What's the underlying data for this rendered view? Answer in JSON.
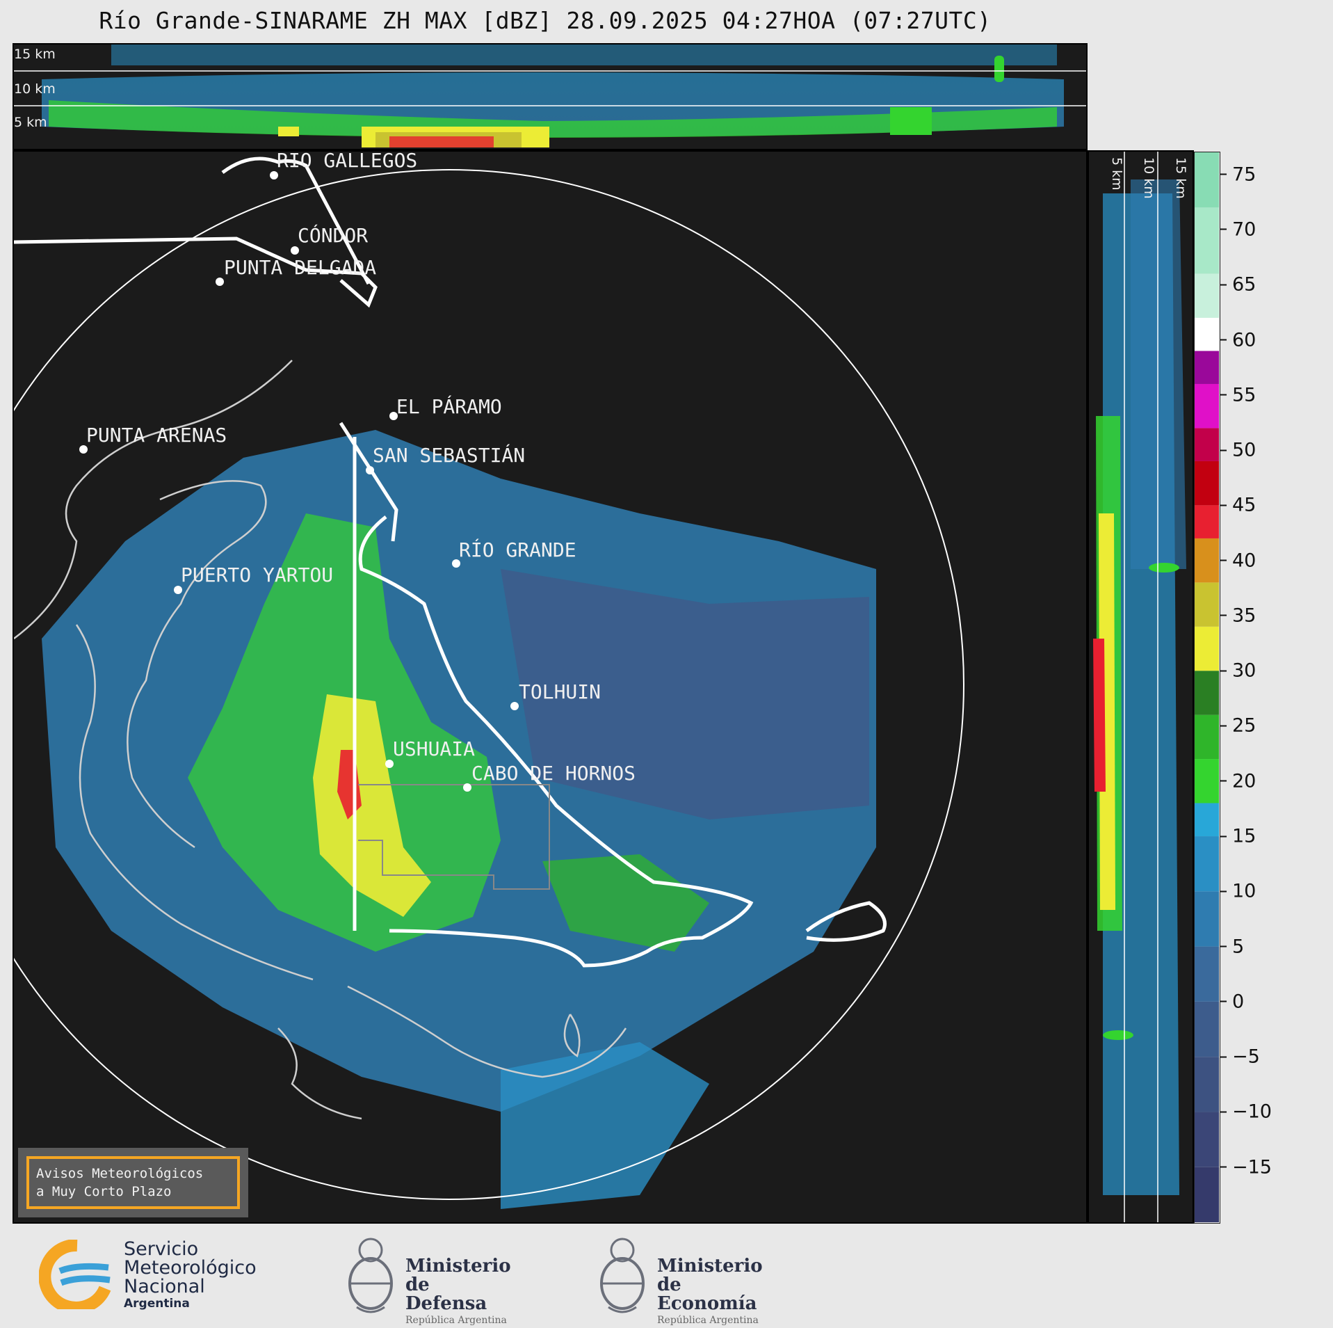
{
  "title": "Río Grande-SINARAME ZH MAX [dBZ] 28.09.2025 04:27HOA (07:27UTC)",
  "top_xsec": {
    "height_labels": [
      "15 km",
      "10 km",
      "5 km"
    ]
  },
  "side_xsec": {
    "height_labels": [
      "5 km",
      "10 km",
      "15 km"
    ]
  },
  "cities": [
    {
      "name": "RÍO GALLEGOS"
    },
    {
      "name": "CÓNDOR"
    },
    {
      "name": "PUNTA DELGADA"
    },
    {
      "name": "PUNTA ARENAS"
    },
    {
      "name": "EL PÁRAMO"
    },
    {
      "name": "SAN SEBASTIÁN"
    },
    {
      "name": "RÍO GRANDE"
    },
    {
      "name": "PUERTO YARTOU"
    },
    {
      "name": "TOLHUIN"
    },
    {
      "name": "USHUAIA"
    },
    {
      "name": "CABO DE HORNOS"
    }
  ],
  "colorbar": {
    "unit": "dBZ",
    "ticks": [
      "75",
      "70",
      "65",
      "60",
      "55",
      "50",
      "45",
      "40",
      "35",
      "30",
      "25",
      "20",
      "15",
      "10",
      "5",
      "0",
      "−5",
      "−10",
      "−15"
    ],
    "tick_values": [
      75,
      70,
      65,
      60,
      55,
      50,
      45,
      40,
      35,
      30,
      25,
      20,
      15,
      10,
      5,
      0,
      -5,
      -10,
      -15
    ],
    "range": [
      -20,
      77
    ],
    "stops": [
      {
        "from": -20,
        "to": -15,
        "color": "#353a6b"
      },
      {
        "from": -15,
        "to": -10,
        "color": "#3b4677"
      },
      {
        "from": -10,
        "to": -5,
        "color": "#3d5281"
      },
      {
        "from": -5,
        "to": 0,
        "color": "#3d5c8c"
      },
      {
        "from": 0,
        "to": 5,
        "color": "#3a6a9c"
      },
      {
        "from": 5,
        "to": 10,
        "color": "#2f7cb0"
      },
      {
        "from": 10,
        "to": 15,
        "color": "#2a8fc4"
      },
      {
        "from": 15,
        "to": 18,
        "color": "#28a7d8"
      },
      {
        "from": 18,
        "to": 22,
        "color": "#34d42f"
      },
      {
        "from": 22,
        "to": 26,
        "color": "#2fb52a"
      },
      {
        "from": 26,
        "to": 30,
        "color": "#2a7f23"
      },
      {
        "from": 30,
        "to": 34,
        "color": "#ecec35"
      },
      {
        "from": 34,
        "to": 38,
        "color": "#c9c330"
      },
      {
        "from": 38,
        "to": 42,
        "color": "#d8901c"
      },
      {
        "from": 42,
        "to": 45,
        "color": "#e82030"
      },
      {
        "from": 45,
        "to": 49,
        "color": "#c20010"
      },
      {
        "from": 49,
        "to": 52,
        "color": "#c2004a"
      },
      {
        "from": 52,
        "to": 56,
        "color": "#e010c8"
      },
      {
        "from": 56,
        "to": 59,
        "color": "#9a089a"
      },
      {
        "from": 59,
        "to": 62,
        "color": "#ffffff"
      },
      {
        "from": 62,
        "to": 66,
        "color": "#c8f0dc"
      },
      {
        "from": 66,
        "to": 72,
        "color": "#a8e8c8"
      },
      {
        "from": 72,
        "to": 77,
        "color": "#88dcb4"
      }
    ]
  },
  "warning_box": {
    "line1": "Avisos Meteorológicos",
    "line2": "a Muy Corto Plazo",
    "border_color": "#f5a623"
  },
  "logos": {
    "smn": {
      "line1": "Servicio",
      "line2": "Meteorológico",
      "line3": "Nacional",
      "line4": "Argentina"
    },
    "defensa": {
      "line1": "Ministerio",
      "line2": "de Defensa",
      "line3": "República Argentina"
    },
    "economia": {
      "line1": "Ministerio",
      "line2": "de Economía",
      "line3": "República Argentina"
    }
  }
}
